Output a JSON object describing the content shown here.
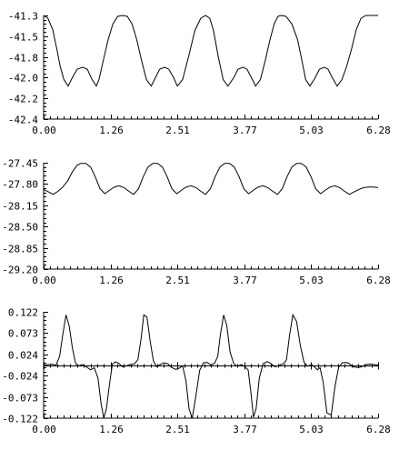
{
  "chart_data": [
    {
      "type": "line",
      "ylim": [
        -42.4,
        -41.3
      ],
      "xlim": [
        0.0,
        6.28
      ],
      "y_tick_labels": [
        "-41.3",
        "-41.5",
        "-41.8",
        "-42.0",
        "-42.2",
        "-42.4"
      ],
      "x_tick_labels": [
        "0.00",
        "1.26",
        "2.51",
        "3.77",
        "5.03",
        "6.28"
      ],
      "series": [
        {
          "x": [
            0.0,
            0.08,
            0.17,
            0.25,
            0.31,
            0.38,
            0.46,
            0.54,
            0.63,
            0.73,
            0.82,
            0.9,
            0.99,
            1.04,
            1.12,
            1.21,
            1.3,
            1.39,
            1.48,
            1.57,
            1.66,
            1.75,
            1.84,
            1.93,
            2.02,
            2.09,
            2.18,
            2.27,
            2.35,
            2.44,
            2.51,
            2.61,
            2.72,
            2.84,
            2.95,
            3.04,
            3.12,
            3.19,
            3.28,
            3.37,
            3.46,
            3.57,
            3.65,
            3.74,
            3.82,
            3.91,
            3.98,
            4.07,
            4.16,
            4.25,
            4.33,
            4.4,
            4.46,
            4.55,
            4.66,
            4.77,
            4.85,
            4.92,
            5.0,
            5.09,
            5.18,
            5.27,
            5.34,
            5.42,
            5.51,
            5.6,
            5.69,
            5.78,
            5.87,
            5.96,
            6.05,
            6.14,
            6.21,
            6.28
          ],
          "values": [
            -41.3,
            -41.33,
            -41.45,
            -41.66,
            -41.84,
            -41.98,
            -42.05,
            -41.96,
            -41.87,
            -41.85,
            -41.87,
            -41.97,
            -42.05,
            -41.98,
            -41.78,
            -41.56,
            -41.39,
            -41.31,
            -41.3,
            -41.31,
            -41.39,
            -41.56,
            -41.78,
            -41.98,
            -42.05,
            -41.97,
            -41.87,
            -41.85,
            -41.87,
            -41.96,
            -42.05,
            -41.98,
            -41.74,
            -41.46,
            -41.33,
            -41.3,
            -41.33,
            -41.46,
            -41.74,
            -41.98,
            -42.05,
            -41.96,
            -41.87,
            -41.85,
            -41.87,
            -41.97,
            -42.05,
            -41.98,
            -41.78,
            -41.56,
            -41.39,
            -41.31,
            -41.3,
            -41.31,
            -41.39,
            -41.56,
            -41.78,
            -41.98,
            -42.05,
            -41.97,
            -41.87,
            -41.85,
            -41.87,
            -41.96,
            -42.05,
            -41.98,
            -41.84,
            -41.66,
            -41.45,
            -41.33,
            -41.3,
            -41.3,
            -41.3,
            -41.3
          ]
        }
      ]
    },
    {
      "type": "line",
      "ylim": [
        -29.2,
        -27.45
      ],
      "xlim": [
        0.0,
        6.28
      ],
      "y_tick_labels": [
        "-27.45",
        "-27.80",
        "-28.15",
        "-28.50",
        "-28.85",
        "-29.20"
      ],
      "x_tick_labels": [
        "0.00",
        "1.26",
        "2.51",
        "3.77",
        "5.03",
        "6.28"
      ],
      "series": [
        {
          "x": [
            0.0,
            0.09,
            0.18,
            0.27,
            0.36,
            0.45,
            0.54,
            0.63,
            0.7,
            0.79,
            0.88,
            0.97,
            1.06,
            1.15,
            1.24,
            1.33,
            1.42,
            1.51,
            1.6,
            1.69,
            1.78,
            1.87,
            1.96,
            2.05,
            2.14,
            2.23,
            2.32,
            2.41,
            2.5,
            2.59,
            2.68,
            2.77,
            2.86,
            2.95,
            3.04,
            3.13,
            3.22,
            3.31,
            3.4,
            3.49,
            3.58,
            3.67,
            3.76,
            3.85,
            3.94,
            4.03,
            4.12,
            4.21,
            4.3,
            4.39,
            4.48,
            4.57,
            4.66,
            4.75,
            4.84,
            4.93,
            5.02,
            5.11,
            5.2,
            5.29,
            5.38,
            5.47,
            5.56,
            5.65,
            5.74,
            5.83,
            5.92,
            6.01,
            6.1,
            6.19,
            6.28
          ],
          "values": [
            -27.89,
            -27.93,
            -27.97,
            -27.92,
            -27.85,
            -27.75,
            -27.6,
            -27.49,
            -27.46,
            -27.46,
            -27.52,
            -27.68,
            -27.88,
            -27.96,
            -27.9,
            -27.85,
            -27.83,
            -27.86,
            -27.92,
            -27.97,
            -27.88,
            -27.68,
            -27.52,
            -27.46,
            -27.46,
            -27.52,
            -27.68,
            -27.88,
            -27.96,
            -27.9,
            -27.85,
            -27.83,
            -27.86,
            -27.92,
            -27.97,
            -27.88,
            -27.68,
            -27.52,
            -27.46,
            -27.46,
            -27.52,
            -27.68,
            -27.88,
            -27.96,
            -27.9,
            -27.85,
            -27.83,
            -27.86,
            -27.92,
            -27.97,
            -27.88,
            -27.68,
            -27.52,
            -27.46,
            -27.46,
            -27.52,
            -27.68,
            -27.88,
            -27.96,
            -27.9,
            -27.85,
            -27.83,
            -27.86,
            -27.92,
            -27.97,
            -27.93,
            -27.89,
            -27.86,
            -27.85,
            -27.85,
            -27.86
          ]
        }
      ]
    },
    {
      "type": "line",
      "ylim": [
        -0.122,
        0.122
      ],
      "xlim": [
        0.0,
        6.28
      ],
      "y_tick_labels": [
        "0.122",
        "0.073",
        "0.024",
        "-0.024",
        "-0.073",
        "-0.122"
      ],
      "x_tick_labels": [
        "0.00",
        "1.26",
        "2.51",
        "3.77",
        "5.03",
        "6.28"
      ],
      "series": [
        {
          "x": [
            0.0,
            0.09,
            0.16,
            0.23,
            0.3,
            0.36,
            0.42,
            0.48,
            0.54,
            0.6,
            0.66,
            0.72,
            0.8,
            0.88,
            0.95,
            1.02,
            1.08,
            1.13,
            1.18,
            1.23,
            1.29,
            1.35,
            1.41,
            1.48,
            1.55,
            1.62,
            1.7,
            1.77,
            1.83,
            1.88,
            1.94,
            2.0,
            2.06,
            2.12,
            2.19,
            2.26,
            2.33,
            2.4,
            2.48,
            2.55,
            2.61,
            2.67,
            2.73,
            2.79,
            2.86,
            2.93,
            3.0,
            3.07,
            3.14,
            3.21,
            3.27,
            3.32,
            3.38,
            3.44,
            3.5,
            3.57,
            3.64,
            3.71,
            3.78,
            3.84,
            3.89,
            3.94,
            3.99,
            4.05,
            4.12,
            4.2,
            4.27,
            4.34,
            4.4,
            4.45,
            4.5,
            4.56,
            4.62,
            4.68,
            4.75,
            4.82,
            4.89,
            4.96,
            5.03,
            5.09,
            5.14,
            5.19,
            5.25,
            5.32,
            5.4,
            5.47,
            5.54,
            5.61,
            5.67,
            5.73,
            5.79,
            5.85,
            5.92,
            5.99,
            6.06,
            6.13,
            6.2,
            6.28
          ],
          "values": [
            0.0,
            0.001,
            0.002,
            -0.001,
            0.02,
            0.07,
            0.115,
            0.09,
            0.04,
            0.003,
            -0.002,
            0.001,
            -0.004,
            -0.011,
            -0.006,
            -0.03,
            -0.09,
            -0.122,
            -0.1,
            -0.05,
            0.002,
            0.007,
            0.004,
            -0.004,
            -0.002,
            0.001,
            0.002,
            0.012,
            0.06,
            0.115,
            0.11,
            0.055,
            0.01,
            -0.004,
            0.001,
            0.005,
            0.003,
            -0.005,
            -0.01,
            -0.007,
            -0.002,
            -0.035,
            -0.1,
            -0.122,
            -0.07,
            -0.012,
            0.005,
            0.006,
            0.0,
            0.004,
            0.02,
            0.07,
            0.115,
            0.09,
            0.03,
            0.003,
            -0.003,
            0.001,
            -0.004,
            -0.011,
            -0.06,
            -0.12,
            -0.1,
            -0.03,
            0.003,
            0.008,
            0.003,
            -0.004,
            -0.002,
            0.001,
            0.002,
            0.012,
            0.07,
            0.115,
            0.1,
            0.045,
            0.006,
            -0.003,
            0.001,
            -0.005,
            -0.011,
            -0.006,
            -0.04,
            -0.11,
            -0.115,
            -0.05,
            -0.005,
            0.005,
            0.006,
            0.004,
            -0.003,
            -0.005,
            -0.006,
            -0.003,
            0.001,
            0.002,
            0.001,
            0.0
          ]
        }
      ]
    }
  ]
}
